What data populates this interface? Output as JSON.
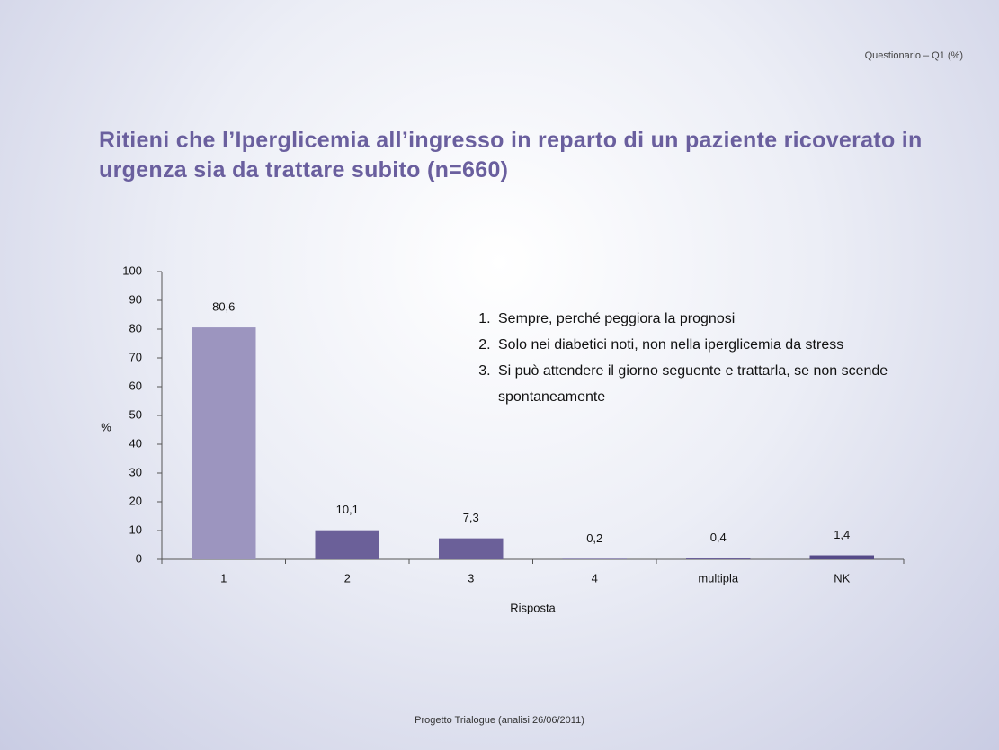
{
  "header": "Questionario – Q1 (%)",
  "footer": "Progetto Trialogue (analisi 26/06/2011)",
  "chart_data": {
    "type": "bar",
    "title": "Ritieni che l’Iperglicemia all’ingresso in reparto di un paziente ricoverato in urgenza sia da trattare subito (n=660)",
    "annotations": [
      "Sempre, perché peggiora la prognosi",
      "Solo nei diabetici noti, non nella iperglicemia da stress",
      "Si può attendere il giorno seguente e trattarla, se non scende spontaneamente"
    ],
    "x_label": "Risposta",
    "y_label": "%",
    "categories": [
      "1",
      "2",
      "3",
      "4",
      "multipla",
      "NK"
    ],
    "values": [
      80.6,
      10.1,
      7.3,
      0.2,
      0.4,
      1.4
    ],
    "value_labels": [
      "80,6",
      "10,1",
      "7,3",
      "0,2",
      "0,4",
      "1,4"
    ],
    "colors": [
      "#9c95bf",
      "#6b6099",
      "#6b6099",
      "#6b6099",
      "#6b6099",
      "#554a88"
    ],
    "ylim": [
      0,
      100
    ],
    "yticks": [
      0,
      10,
      20,
      30,
      40,
      50,
      60,
      70,
      80,
      90,
      100
    ],
    "grid": false
  }
}
